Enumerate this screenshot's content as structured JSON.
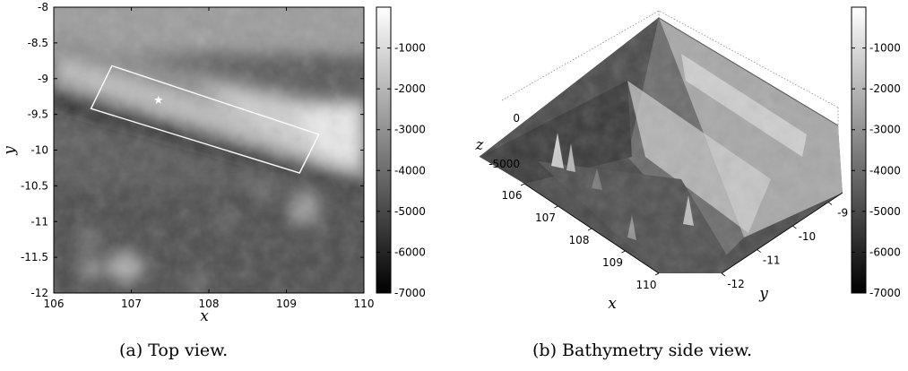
{
  "chart_data": [
    {
      "type": "heatmap",
      "view": "top",
      "xlabel": "x",
      "ylabel": "y",
      "xlim": [
        106,
        110
      ],
      "ylim": [
        -12,
        -8
      ],
      "xticks": [
        "106",
        "107",
        "108",
        "109",
        "110"
      ],
      "yticks": [
        "-8",
        "-8.5",
        "-9",
        "-9.5",
        "-10",
        "-10.5",
        "-11",
        "-11.5",
        "-12"
      ],
      "colorbar": {
        "range": [
          -7000,
          0
        ],
        "ticks": [
          "-1000",
          "-2000",
          "-3000",
          "-4000",
          "-5000",
          "-6000",
          "-7000"
        ],
        "colormap": "gray"
      },
      "annotations": {
        "rectangle_corners": [
          [
            106.75,
            -8.82
          ],
          [
            109.42,
            -9.78
          ],
          [
            109.17,
            -10.32
          ],
          [
            106.48,
            -9.42
          ]
        ],
        "star": [
          107.35,
          -9.3
        ]
      },
      "caption": "(a) Top view."
    },
    {
      "type": "surface",
      "view": "bathymetry side view",
      "xlabel": "x",
      "ylabel": "y",
      "zlabel": "z",
      "xticks": [
        "106",
        "107",
        "108",
        "109",
        "110"
      ],
      "yticks": [
        "-9",
        "-10",
        "-11",
        "-12"
      ],
      "zticks": [
        "0",
        "-5000"
      ],
      "colorbar": {
        "range": [
          -7000,
          0
        ],
        "ticks": [
          "-1000",
          "-2000",
          "-3000",
          "-4000",
          "-5000",
          "-6000",
          "-7000"
        ],
        "colormap": "gray"
      },
      "caption": "(b) Bathymetry side view."
    }
  ]
}
